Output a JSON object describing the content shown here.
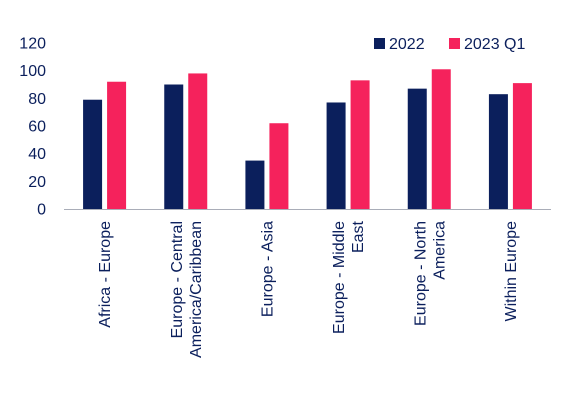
{
  "chart_data": {
    "type": "bar",
    "title": "",
    "xlabel": "",
    "ylabel": "",
    "categories": [
      "Africa - Europe",
      "Europe - Central America/Caribbean",
      "Europe - Asia",
      "Europe - Middle East",
      "Europe - North America",
      "Within Europe"
    ],
    "category_label_lines": [
      [
        "Africa - Europe"
      ],
      [
        "Europe - Central",
        "America/Caribbean"
      ],
      [
        "Europe - Asia"
      ],
      [
        "Europe - Middle",
        "East"
      ],
      [
        "Europe - North",
        "America"
      ],
      [
        "Within Europe"
      ]
    ],
    "series": [
      {
        "name": "2022",
        "color": "#0b1f5c",
        "values": [
          79,
          90,
          35,
          77,
          87,
          83
        ]
      },
      {
        "name": "2023 Q1",
        "color": "#f5225c",
        "values": [
          92,
          98,
          62,
          93,
          101,
          91
        ]
      }
    ],
    "ylim": [
      0,
      120
    ],
    "yticks": [
      0,
      20,
      40,
      60,
      80,
      100,
      120
    ],
    "grid": false,
    "legend_position": "top-right",
    "text_color": "#0b1f5c"
  }
}
